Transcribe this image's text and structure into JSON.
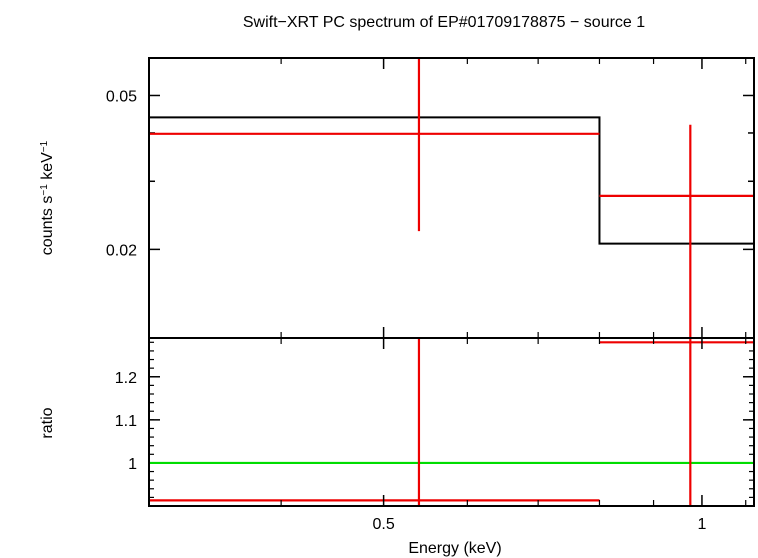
{
  "chart_data": {
    "type": "spectrum",
    "title": "Swift−XRT PC spectrum of EP#01709178875 − source 1",
    "xlabel": "Energy (keV)",
    "x_scale": "log",
    "xlim": [
      0.3,
      1.12
    ],
    "x_ticks": [
      {
        "value": 0.5,
        "label": "0.5"
      },
      {
        "value": 1,
        "label": "1"
      }
    ],
    "panels": [
      {
        "id": "spectrum",
        "ylabel_parts": {
          "pre": "counts s",
          "exp1": "−1",
          "mid": " keV",
          "exp2": "−1"
        },
        "y_scale": "log",
        "ylim": [
          0.0118,
          0.0625
        ],
        "y_ticks": [
          {
            "value": 0.02,
            "label": "0.02"
          },
          {
            "value": 0.05,
            "label": "0.05"
          }
        ],
        "y_minor_ticks": [
          0.03,
          0.04
        ],
        "model": {
          "name": "model",
          "color": "#000000",
          "steps": [
            {
              "x_low": 0.3,
              "x_high": 0.8,
              "y": 0.0439
            },
            {
              "x_low": 0.8,
              "x_high": 1.12,
              "y": 0.0207
            }
          ]
        },
        "data": {
          "name": "data",
          "color": "#ee0000",
          "points": [
            {
              "x": 0.54,
              "x_low": 0.3,
              "x_high": 0.8,
              "y": 0.0398,
              "y_low": 0.0223,
              "y_high": 0.0625
            },
            {
              "x": 0.975,
              "x_low": 0.8,
              "x_high": 1.12,
              "y": 0.0275,
              "y_low": 0.0118,
              "y_high": 0.042
            }
          ]
        }
      },
      {
        "id": "ratio",
        "ylabel": "ratio",
        "y_scale": "linear",
        "ylim": [
          0.9,
          1.29
        ],
        "y_ticks": [
          {
            "value": 1,
            "label": "1"
          },
          {
            "value": 1.1,
            "label": "1.1"
          },
          {
            "value": 1.2,
            "label": "1.2"
          }
        ],
        "y_minor_step": 0.02,
        "reference_line": {
          "y": 1,
          "color": "#00dd00"
        },
        "data": {
          "name": "ratio",
          "color": "#ee0000",
          "points": [
            {
              "x": 0.54,
              "x_low": 0.3,
              "x_high": 0.8,
              "y": 0.913,
              "y_low": 0.9,
              "y_high": 1.29
            },
            {
              "x": 0.975,
              "x_low": 0.8,
              "x_high": 1.12,
              "y": 1.28,
              "y_low": 0.9,
              "y_high": 1.29
            }
          ]
        }
      }
    ]
  }
}
